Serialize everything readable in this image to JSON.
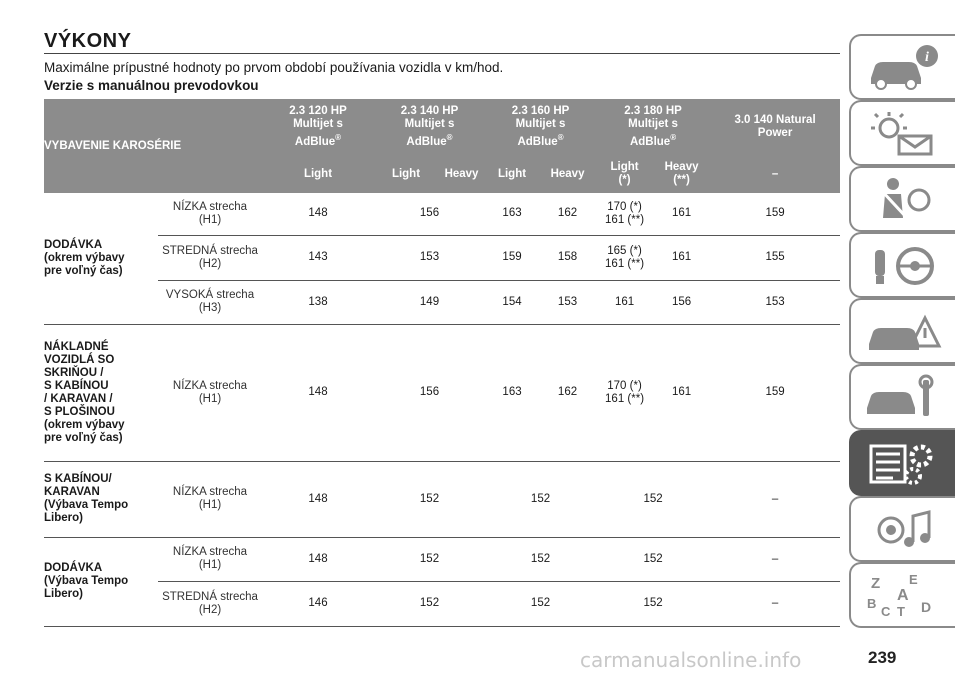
{
  "page": {
    "title": "VÝKONY",
    "intro": "Maximálne prípustné hodnoty po prvom období používania vozidla v km/hod.",
    "subheading": "Verzie s manuálnou prevodovkou",
    "page_number": "239",
    "watermark": "carmanualsonline.info"
  },
  "table": {
    "header": {
      "body_type": "VYBAVENIE KAROSÉRIE",
      "engines": [
        {
          "line1": "2.3 120 HP",
          "line2": "Multijet s",
          "line3": "AdBlue",
          "reg": "®"
        },
        {
          "line1": "2.3 140 HP",
          "line2": "Multijet s",
          "line3": "AdBlue",
          "reg": "®"
        },
        {
          "line1": "2.3 160 HP",
          "line2": "Multijet s",
          "line3": "AdBlue",
          "reg": "®"
        },
        {
          "line1": "2.3 180 HP",
          "line2": "Multijet s",
          "line3": "AdBlue",
          "reg": "®"
        },
        {
          "line1": "3.0 140 Natural",
          "line2": "Power"
        }
      ],
      "variants": [
        "Light",
        "Light",
        "Heavy",
        "Light",
        "Heavy",
        "Light",
        "(*)",
        "Heavy",
        "(**)",
        "–"
      ]
    },
    "groups": [
      {
        "name": [
          "DODÁVKA",
          "(okrem výbavy",
          "pre voľný čas)"
        ],
        "rows": [
          {
            "roof": [
              "NÍZKA strecha",
              "(H1)"
            ],
            "v": [
              "148",
              "156",
              "163",
              "162",
              "170 (*)",
              "161 (**)",
              "161",
              "159"
            ]
          },
          {
            "roof": [
              "STREDNÁ strecha",
              "(H2)"
            ],
            "v": [
              "143",
              "153",
              "159",
              "158",
              "165 (*)",
              "161 (**)",
              "161",
              "155"
            ]
          },
          {
            "roof": [
              "VYSOKÁ strecha",
              "(H3)"
            ],
            "v": [
              "138",
              "149",
              "154",
              "153",
              "161",
              "156",
              "153"
            ]
          }
        ]
      },
      {
        "name": [
          "NÁKLADNÉ",
          "VOZIDLÁ SO",
          "SKRIŇOU /",
          "S KABÍNOU",
          "/ KARAVAN /",
          "S PLOŠINOU",
          "(okrem výbavy",
          "pre voľný čas)"
        ],
        "rows": [
          {
            "roof": [
              "NÍZKA strecha",
              "(H1)"
            ],
            "v": [
              "148",
              "156",
              "163",
              "162",
              "170 (*)",
              "161 (**)",
              "161",
              "159"
            ]
          }
        ]
      },
      {
        "name": [
          "S KABÍNOU/",
          "KARAVAN",
          "(Výbava Tempo",
          "Libero)"
        ],
        "rows": [
          {
            "roof": [
              "NÍZKA strecha",
              "(H1)"
            ],
            "v": [
              "148",
              "152",
              "152",
              "152",
              "–"
            ]
          }
        ]
      },
      {
        "name": [
          "DODÁVKA",
          "(Výbava Tempo",
          "Libero)"
        ],
        "rows": [
          {
            "roof": [
              "NÍZKA strecha",
              "(H1)"
            ],
            "v": [
              "148",
              "152",
              "152",
              "152",
              "–"
            ]
          },
          {
            "roof": [
              "STREDNÁ strecha",
              "(H2)"
            ],
            "v": [
              "146",
              "152",
              "152",
              "152",
              "–"
            ]
          }
        ]
      }
    ]
  },
  "tabs": [
    {
      "icon": "car-info-icon",
      "active": false
    },
    {
      "icon": "warning-lights-icon",
      "active": false
    },
    {
      "icon": "seatbelt-airbag-icon",
      "active": false
    },
    {
      "icon": "key-steering-wheel-icon",
      "active": false
    },
    {
      "icon": "emergency-car-icon",
      "active": false
    },
    {
      "icon": "car-maintenance-icon",
      "active": false
    },
    {
      "icon": "technical-data-icon",
      "active": true
    },
    {
      "icon": "multimedia-icon",
      "active": false
    },
    {
      "icon": "alphabetical-index-icon",
      "active": false
    }
  ],
  "colors": {
    "header_bg": "#8c8c8c",
    "tab_active": "#555555",
    "tab_border": "#8a8a8a"
  }
}
